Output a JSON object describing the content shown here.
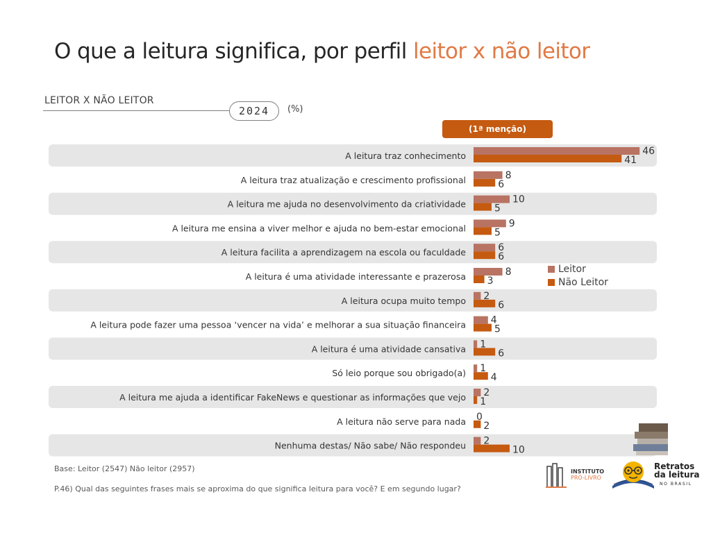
{
  "title": {
    "main": "O que a leitura significa, por perfil",
    "accent": "leitor x não leitor"
  },
  "section_label": "LEITOR X NÃO LEITOR",
  "year_badge": "2024",
  "unit_label": "(%)",
  "mention_badge": "(1ª menção)",
  "colors": {
    "row_band": "#e6e6e6",
    "leitor": "#b87363",
    "nao_leitor": "#c55a11",
    "accent": "#e07a45",
    "badge": "#c55a11"
  },
  "legend": [
    {
      "label": "Leitor",
      "color": "#b87363"
    },
    {
      "label": "Não Leitor",
      "color": "#c55a11"
    }
  ],
  "footer": {
    "base_note": "Base: Leitor (2547) Não leitor (2957)",
    "question_note": "P.46) Qual das seguintes frases mais se aproxima do que significa leitura para você? E em segundo lugar?"
  },
  "logos": {
    "instituto_line1": "INSTITUTO",
    "instituto_line2": "PRÓ-LIVRO",
    "retratos_line1": "Retratos",
    "retratos_line2": "da leitura",
    "retratos_line3": "NO BRASIL",
    "retratos_icon": "reading-face-icon"
  },
  "chart_data": {
    "type": "bar",
    "orientation": "horizontal",
    "categories": [
      "A leitura traz conhecimento",
      "A leitura traz atualização e crescimento profissional",
      "A leitura me ajuda no desenvolvimento da criatividade",
      "A leitura me ensina a viver melhor e ajuda no bem-estar emocional",
      "A leitura facilita a aprendizagem na escola ou faculdade",
      "A leitura é uma atividade interessante e prazerosa",
      "A leitura ocupa muito tempo",
      "A leitura pode fazer uma pessoa ‘vencer na vida’ e melhorar a sua situação financeira",
      "A leitura é uma atividade cansativa",
      "Só leio porque sou obrigado(a)",
      "A leitura me ajuda a identificar FakeNews e questionar as informações que vejo",
      "A leitura não serve para nada",
      "Nenhuma destas/ Não sabe/ Não respondeu"
    ],
    "series": [
      {
        "name": "Leitor",
        "values": [
          46,
          8,
          10,
          9,
          6,
          8,
          2,
          4,
          1,
          1,
          2,
          0,
          2
        ]
      },
      {
        "name": "Não Leitor",
        "values": [
          41,
          6,
          5,
          5,
          6,
          3,
          6,
          5,
          6,
          4,
          1,
          2,
          10
        ]
      }
    ],
    "xlim": [
      0,
      46
    ],
    "legend_position": "right"
  }
}
